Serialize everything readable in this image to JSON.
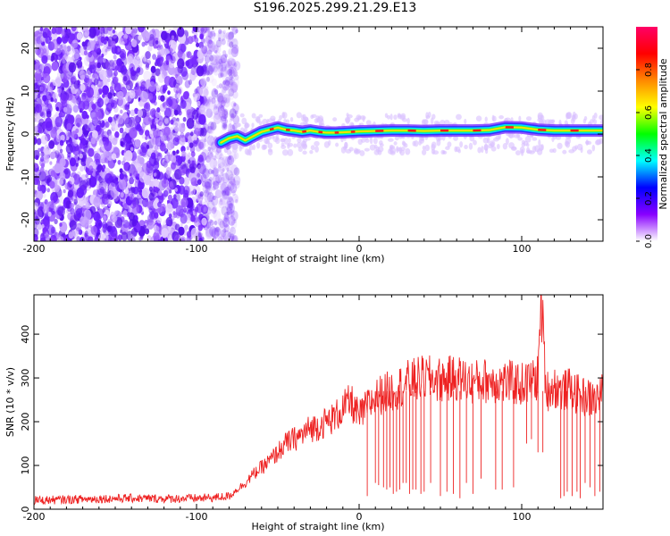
{
  "title": "S196.2025.299.21.29.E13",
  "colors": {
    "spectrogram_scatter": "#6a1bff",
    "snr_line": "#ee2222",
    "axis": "#000000"
  },
  "chart_data": [
    {
      "type": "heatmap",
      "xlabel": "Height of straight line (km)",
      "ylabel": "Frequency (Hz)",
      "xlim": [
        -200,
        150
      ],
      "ylim": [
        -25,
        25
      ],
      "x_ticks": [
        -200,
        -100,
        0,
        100
      ],
      "x_tick_labels": [
        "-200",
        "-100",
        "0",
        "100"
      ],
      "y_ticks": [
        -20,
        -10,
        0,
        10,
        20
      ],
      "y_tick_labels": [
        "-20",
        "-10",
        "0",
        "10",
        "20"
      ],
      "grid": false,
      "colorbar": {
        "label": "Normalized spectral amplitude",
        "range": [
          0,
          1
        ],
        "ticks": [
          0.0,
          0.2,
          0.4,
          0.6,
          0.8
        ],
        "tick_labels": [
          "0.0",
          "0.2",
          "0.4",
          "0.6",
          "0.8"
        ],
        "colormap": [
          "#ffffff",
          "#8800ff",
          "#0000ff",
          "#00ffff",
          "#00ff00",
          "#ffff00",
          "#ff8800",
          "#ff0000",
          "#ff0066"
        ]
      },
      "ridge": {
        "x": [
          -85,
          -80,
          -75,
          -70,
          -65,
          -60,
          -55,
          -50,
          -45,
          -40,
          -35,
          -30,
          -25,
          -20,
          -15,
          -10,
          -5,
          0,
          10,
          20,
          30,
          40,
          50,
          60,
          70,
          80,
          90,
          100,
          110,
          120,
          130,
          140,
          150
        ],
        "frequency": [
          -2,
          -1,
          -0.5,
          -1.5,
          -0.5,
          0.5,
          1,
          1.5,
          1,
          0.8,
          0.5,
          0.8,
          0.5,
          0.3,
          0.3,
          0.4,
          0.5,
          0.6,
          0.7,
          0.8,
          0.8,
          0.7,
          0.8,
          0.8,
          0.8,
          0.9,
          1.6,
          1.5,
          1.0,
          0.8,
          0.8,
          0.8,
          0.8
        ]
      }
    },
    {
      "type": "line",
      "xlabel": "Height of straight line (km)",
      "ylabel": "SNR (10 * v/v)",
      "xlim": [
        -200,
        150
      ],
      "ylim": [
        0,
        490
      ],
      "x_ticks": [
        -200,
        -100,
        0,
        100
      ],
      "x_tick_labels": [
        "-200",
        "-100",
        "0",
        "100"
      ],
      "y_ticks": [
        0,
        100,
        200,
        300,
        400
      ],
      "y_tick_labels": [
        "0",
        "100",
        "200",
        "300",
        "400"
      ],
      "grid": false,
      "series": [
        {
          "color": "#ee2222",
          "x": [
            -200,
            -180,
            -160,
            -140,
            -120,
            -100,
            -90,
            -80,
            -75,
            -70,
            -65,
            -60,
            -55,
            -50,
            -45,
            -40,
            -35,
            -30,
            -25,
            -20,
            -15,
            -10,
            -5,
            0,
            5,
            10,
            15,
            20,
            25,
            30,
            35,
            40,
            50,
            60,
            70,
            80,
            90,
            100,
            105,
            110,
            112,
            115,
            120,
            125,
            130,
            135,
            140,
            145,
            150
          ],
          "y": [
            20,
            22,
            24,
            25,
            24,
            25,
            26,
            30,
            45,
            60,
            80,
            95,
            110,
            130,
            150,
            160,
            170,
            185,
            190,
            200,
            210,
            230,
            245,
            210,
            235,
            255,
            265,
            270,
            280,
            290,
            295,
            300,
            295,
            300,
            290,
            295,
            290,
            285,
            290,
            300,
            480,
            270,
            280,
            270,
            275,
            260,
            255,
            250,
            265
          ]
        }
      ],
      "dips": [
        {
          "x": 5,
          "y": 30
        },
        {
          "x": 10,
          "y": 60
        },
        {
          "x": 12,
          "y": 55
        },
        {
          "x": 15,
          "y": 50
        },
        {
          "x": 17,
          "y": 45
        },
        {
          "x": 19,
          "y": 50
        },
        {
          "x": 21,
          "y": 35
        },
        {
          "x": 23,
          "y": 40
        },
        {
          "x": 25,
          "y": 45
        },
        {
          "x": 27,
          "y": 60
        },
        {
          "x": 29,
          "y": 60
        },
        {
          "x": 31,
          "y": 35
        },
        {
          "x": 33,
          "y": 45
        },
        {
          "x": 35,
          "y": 45
        },
        {
          "x": 38,
          "y": 35
        },
        {
          "x": 40,
          "y": 40
        },
        {
          "x": 44,
          "y": 60
        },
        {
          "x": 50,
          "y": 30
        },
        {
          "x": 54,
          "y": 40
        },
        {
          "x": 58,
          "y": 35
        },
        {
          "x": 62,
          "y": 25
        },
        {
          "x": 66,
          "y": 60
        },
        {
          "x": 70,
          "y": 35
        },
        {
          "x": 75,
          "y": 70
        },
        {
          "x": 84,
          "y": 45
        },
        {
          "x": 88,
          "y": 45
        },
        {
          "x": 95,
          "y": 50
        },
        {
          "x": 103,
          "y": 150
        },
        {
          "x": 106,
          "y": 160
        },
        {
          "x": 110,
          "y": 130
        },
        {
          "x": 113,
          "y": 130
        },
        {
          "x": 124,
          "y": 25
        },
        {
          "x": 126,
          "y": 30
        },
        {
          "x": 128,
          "y": 40
        },
        {
          "x": 131,
          "y": 30
        },
        {
          "x": 134,
          "y": 40
        },
        {
          "x": 136,
          "y": 25
        },
        {
          "x": 139,
          "y": 60
        },
        {
          "x": 142,
          "y": 50
        },
        {
          "x": 145,
          "y": 30
        },
        {
          "x": 148,
          "y": 40
        }
      ]
    }
  ]
}
